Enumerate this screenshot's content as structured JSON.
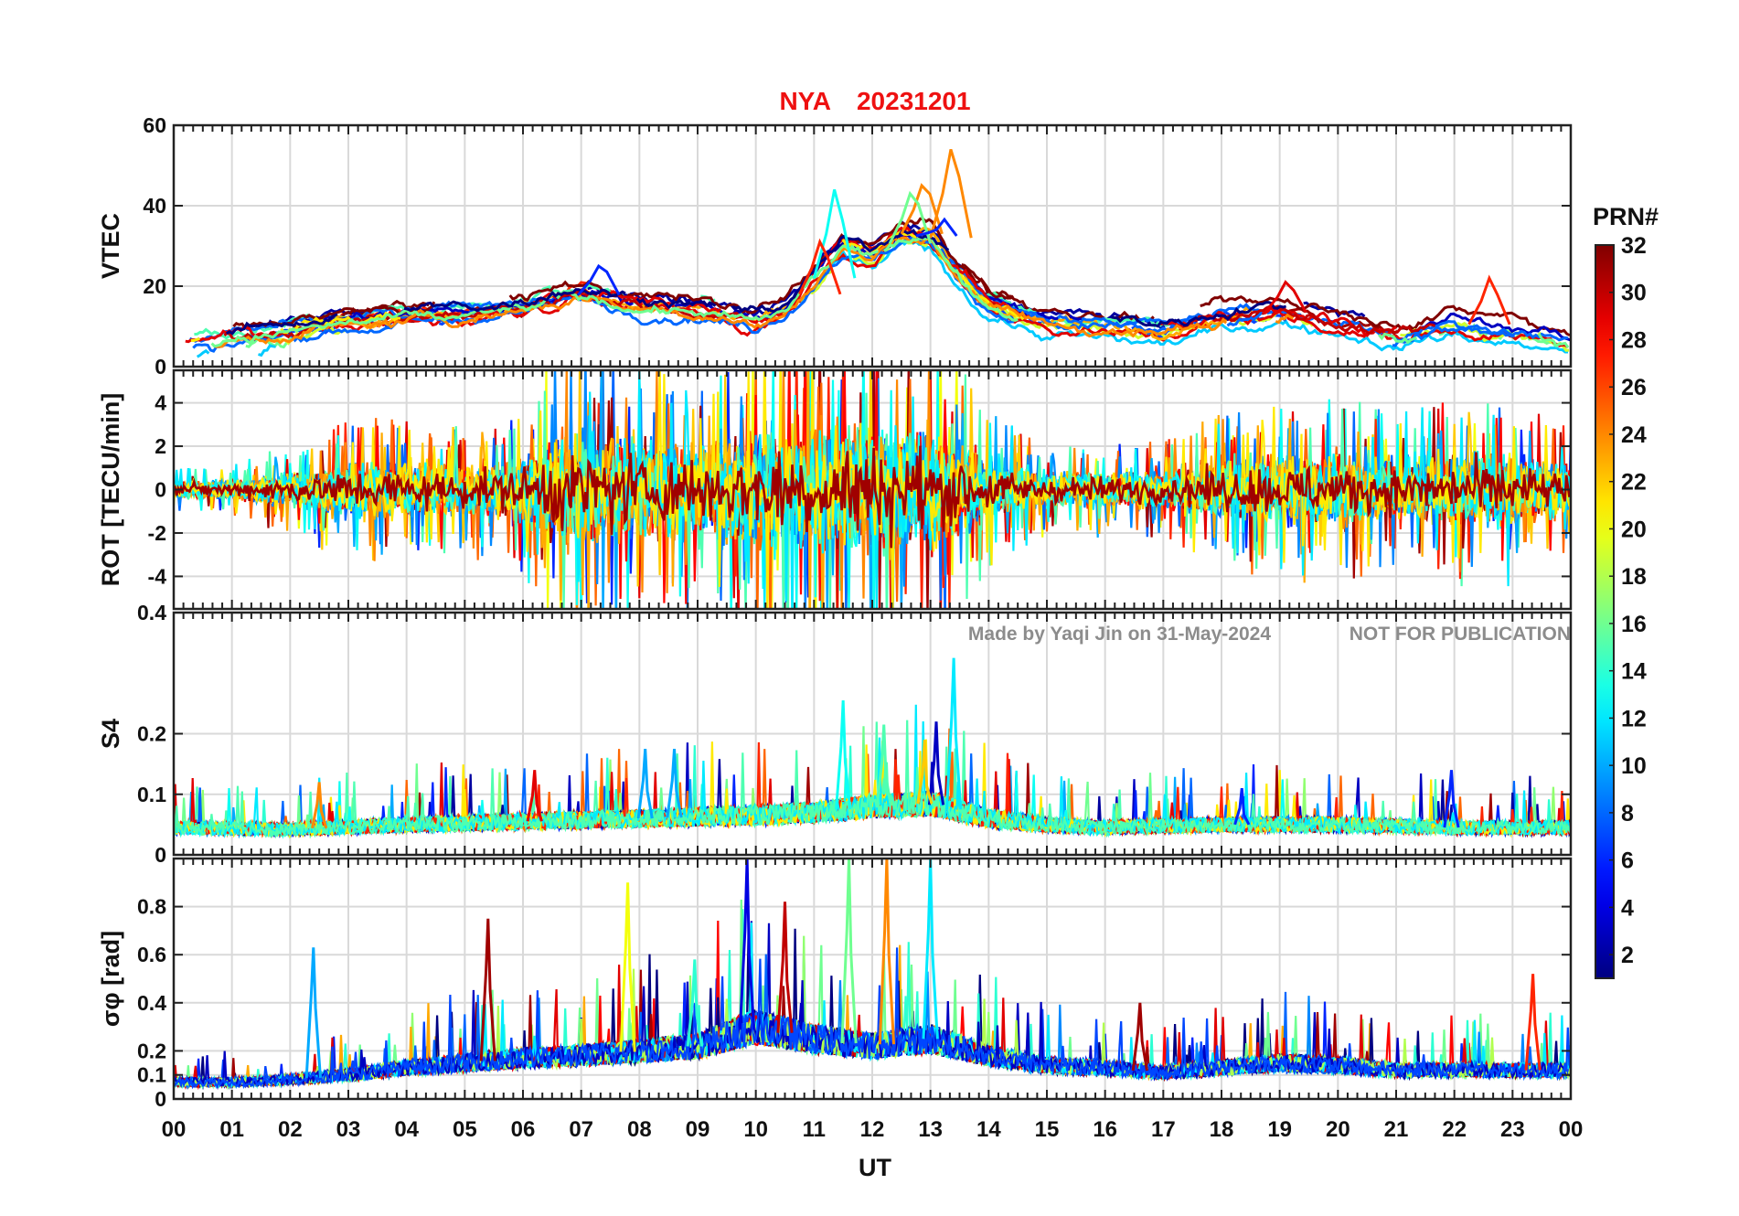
{
  "figure": {
    "title_station": "NYA",
    "title_date": "20231201",
    "watermark_author": "Made by Yaqi Jin on 31-May-2024",
    "watermark_notice": "NOT FOR PUBLICATION",
    "title_color": "#ee1111",
    "watermark_color": "#8c8c8c"
  },
  "chart_data": {
    "type": "line",
    "title": "NYA   20231201",
    "xlabel": "UT",
    "x_ticks": [
      "00",
      "01",
      "02",
      "03",
      "04",
      "05",
      "06",
      "07",
      "08",
      "09",
      "10",
      "11",
      "12",
      "13",
      "14",
      "15",
      "16",
      "17",
      "18",
      "19",
      "20",
      "21",
      "22",
      "23",
      "00"
    ],
    "xlim": [
      0,
      24
    ],
    "grid": true,
    "colorbar": {
      "label": "PRN#",
      "range": [
        1,
        32
      ],
      "ticks": [
        2,
        4,
        6,
        8,
        10,
        12,
        14,
        16,
        18,
        20,
        22,
        24,
        26,
        28,
        30,
        32
      ],
      "colormap": "jet"
    },
    "panels": [
      {
        "id": "vtec",
        "ylabel": "VTEC",
        "ylim": [
          0,
          60
        ],
        "yticks": [
          0,
          20,
          40,
          60
        ],
        "envelope": {
          "x": [
            0,
            1,
            2,
            3,
            4,
            5,
            6,
            7,
            8,
            9,
            10,
            10.5,
            11,
            11.5,
            12,
            12.5,
            13,
            13.5,
            14,
            15,
            16,
            17,
            18,
            19,
            20,
            21,
            22,
            23,
            24
          ],
          "y": [
            5,
            7,
            9,
            11,
            12,
            13,
            15,
            18,
            15,
            14,
            11,
            14,
            22,
            30,
            27,
            33,
            32,
            23,
            16,
            11,
            10,
            9,
            12,
            14,
            11,
            8,
            11,
            9,
            6
          ]
        },
        "peaks": [
          {
            "x": 13.35,
            "y": 54,
            "prn": 24
          },
          {
            "x": 12.85,
            "y": 45,
            "prn": 24
          },
          {
            "x": 11.35,
            "y": 44,
            "prn": 13
          },
          {
            "x": 12.65,
            "y": 43,
            "prn": 16
          },
          {
            "x": 13.1,
            "y": 34,
            "prn": 6
          },
          {
            "x": 11.1,
            "y": 31,
            "prn": 27
          },
          {
            "x": 7.3,
            "y": 25,
            "prn": 6
          },
          {
            "x": 22.6,
            "y": 22,
            "prn": 27
          },
          {
            "x": 19.1,
            "y": 21,
            "prn": 29
          }
        ]
      },
      {
        "id": "rot",
        "ylabel": "ROT [TECU/min]",
        "ylim": [
          -5.5,
          5.5
        ],
        "yticks": [
          -4,
          -2,
          0,
          2,
          4
        ],
        "envelope": {
          "x": [
            0,
            1,
            2,
            3,
            4,
            5,
            6,
            6.5,
            7,
            8,
            9,
            10,
            11,
            12,
            12.5,
            13,
            13.5,
            14,
            15,
            16,
            17,
            18,
            19,
            20,
            21,
            22,
            23,
            24
          ],
          "y": [
            0.7,
            0.9,
            1.5,
            2.4,
            2.4,
            2.2,
            2.8,
            4.5,
            5,
            4.5,
            4,
            5,
            5.5,
            5.5,
            5.5,
            5,
            4.2,
            2.6,
            1.5,
            1.6,
            1.6,
            2.6,
            3,
            3.2,
            2.5,
            3.2,
            3.2,
            2
          ]
        }
      },
      {
        "id": "s4",
        "ylabel": "S4",
        "ylim": [
          0,
          0.4
        ],
        "yticks": [
          0,
          0.1,
          0.2,
          0.4
        ],
        "baseline": {
          "x": [
            0,
            2,
            4,
            6,
            8,
            10,
            11,
            12,
            13,
            14,
            15,
            16,
            18,
            20,
            22,
            24
          ],
          "y": [
            0.045,
            0.042,
            0.05,
            0.055,
            0.06,
            0.065,
            0.07,
            0.08,
            0.085,
            0.06,
            0.05,
            0.045,
            0.05,
            0.05,
            0.045,
            0.045
          ]
        },
        "peaks": [
          {
            "x": 13.4,
            "y": 0.325,
            "prn": 12
          },
          {
            "x": 11.5,
            "y": 0.255,
            "prn": 13
          },
          {
            "x": 13.1,
            "y": 0.22,
            "prn": 3
          },
          {
            "x": 12.2,
            "y": 0.215,
            "prn": 15
          },
          {
            "x": 12.9,
            "y": 0.19,
            "prn": 22
          },
          {
            "x": 8.6,
            "y": 0.175,
            "prn": 10
          },
          {
            "x": 8.1,
            "y": 0.175,
            "prn": 10
          },
          {
            "x": 21.95,
            "y": 0.14,
            "prn": 6
          },
          {
            "x": 6.2,
            "y": 0.14,
            "prn": 29
          },
          {
            "x": 18.35,
            "y": 0.11,
            "prn": 6
          },
          {
            "x": 2.5,
            "y": 0.12,
            "prn": 24
          }
        ]
      },
      {
        "id": "sigma_phi",
        "ylabel": "σφ [rad]",
        "ylim": [
          0,
          1
        ],
        "yticks": [
          0,
          0.1,
          0.2,
          0.4,
          0.6,
          0.8
        ],
        "baseline": {
          "x": [
            0,
            1,
            2,
            3,
            4,
            5,
            6,
            7,
            8,
            9,
            10,
            11,
            12,
            13,
            14,
            15,
            16,
            17,
            18,
            19,
            20,
            21,
            22,
            23,
            24
          ],
          "y": [
            0.07,
            0.07,
            0.08,
            0.1,
            0.13,
            0.15,
            0.17,
            0.18,
            0.2,
            0.22,
            0.3,
            0.25,
            0.22,
            0.25,
            0.18,
            0.14,
            0.13,
            0.11,
            0.13,
            0.15,
            0.14,
            0.12,
            0.12,
            0.12,
            0.12
          ]
        },
        "peaks": [
          {
            "x": 9.85,
            "y": 1.0,
            "prn": 4
          },
          {
            "x": 13.0,
            "y": 1.0,
            "prn": 12
          },
          {
            "x": 11.6,
            "y": 1.0,
            "prn": 16
          },
          {
            "x": 12.25,
            "y": 1.0,
            "prn": 24
          },
          {
            "x": 7.8,
            "y": 0.9,
            "prn": 20
          },
          {
            "x": 10.5,
            "y": 0.82,
            "prn": 30
          },
          {
            "x": 5.4,
            "y": 0.75,
            "prn": 31
          },
          {
            "x": 2.4,
            "y": 0.63,
            "prn": 10
          },
          {
            "x": 8.95,
            "y": 0.58,
            "prn": 14
          },
          {
            "x": 23.35,
            "y": 0.52,
            "prn": 27
          },
          {
            "x": 16.6,
            "y": 0.4,
            "prn": 31
          }
        ]
      }
    ]
  }
}
